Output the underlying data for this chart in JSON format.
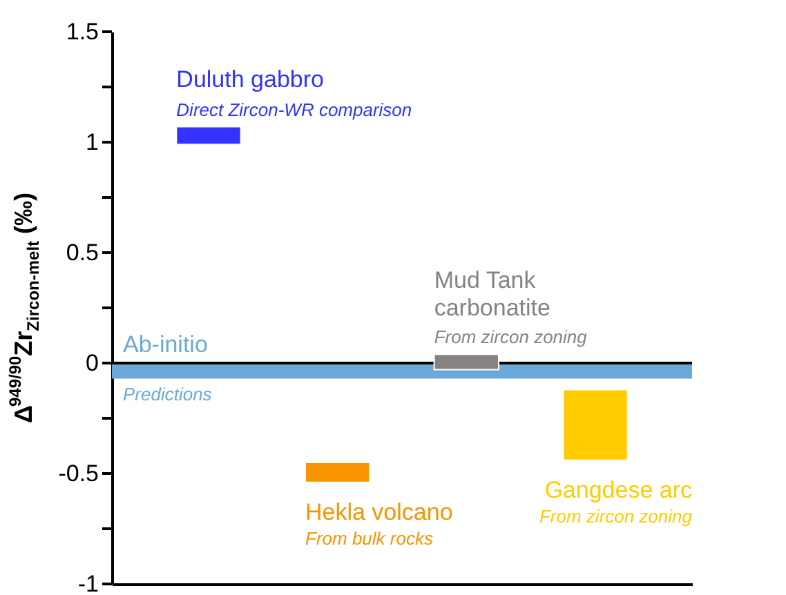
{
  "chart_data": {
    "type": "bar",
    "ylabel": "Δ$^{949/90}$Zr$_{Zircon-melt}$ (‰)",
    "categories": [
      null,
      null,
      null,
      null
    ],
    "values": [
      0.08,
      0.09,
      0.07,
      0.32
    ],
    "base": [
      0.99,
      -0.54,
      -0.03,
      -0.44
    ],
    "colors": [
      "#3333ff",
      "#f79400",
      "#878383",
      "#ffcc00"
    ],
    "annotations": [
      "Duluth gabbro",
      "Direct Zircon-WR comparison",
      "Hekla volcano",
      "From bulk rocks",
      "Mud Tank carbonatite",
      "From zircon zoning",
      "Gangdese arc",
      "From zircon zoning",
      "Predictions"
    ],
    "bands": [
      {
        "axis": "y",
        "from": -0.07,
        "to": 0,
        "label": "Ab-initio",
        "color": "#6aa9d8"
      }
    ],
    "ref_lines": [
      {
        "axis": "y",
        "value": 0,
        "color": "#000000"
      }
    ],
    "ylim": [
      -1,
      1.5
    ],
    "yticks": [
      -1,
      {
        "value": -0.75,
        "label": null
      },
      -0.5,
      {
        "value": -0.25,
        "label": null
      },
      0,
      {
        "value": 0.25,
        "label": null
      },
      0.5,
      {
        "value": 0.75,
        "label": null
      },
      1,
      {
        "value": 1.25,
        "label": null
      },
      1.5
    ],
    "tick_labels": "y",
    "grid": false
  }
}
